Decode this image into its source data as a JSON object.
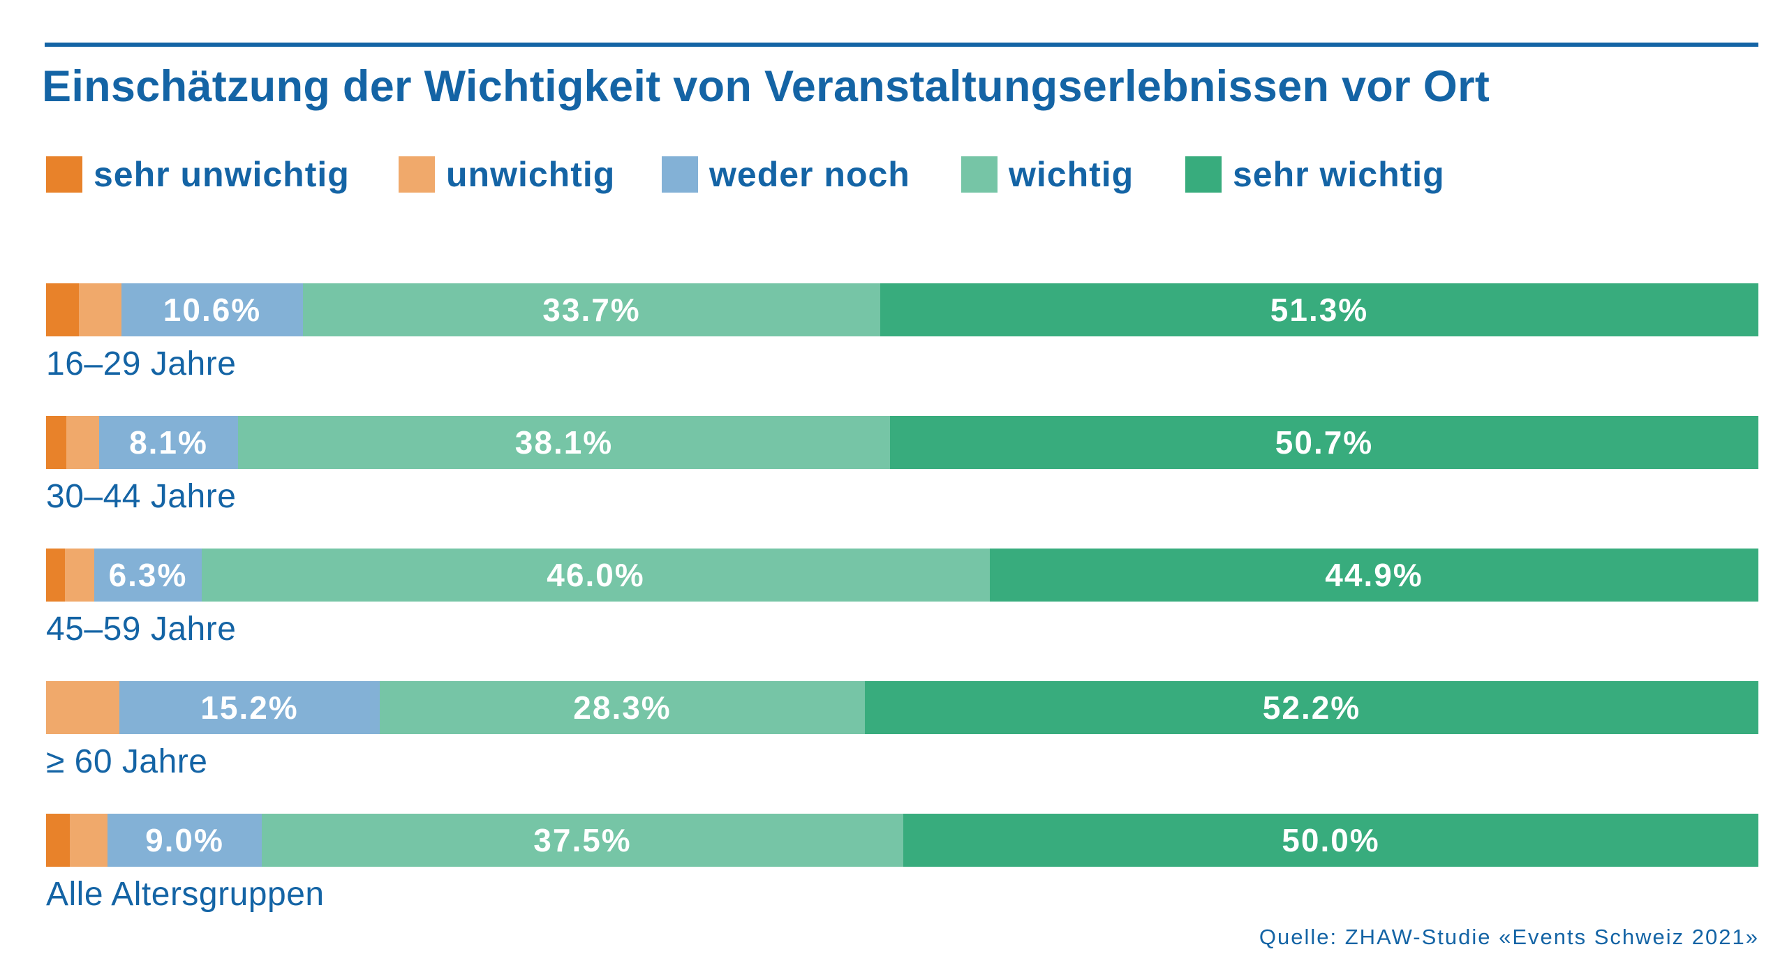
{
  "chart_data": {
    "type": "bar",
    "orientation": "horizontal",
    "stacked": true,
    "title": "Einschätzung der Wichtigkeit von Veranstaltungserlebnissen vor Ort",
    "xlim": [
      0,
      100
    ],
    "grid": false,
    "legend_position": "top",
    "categories": [
      "16–29 Jahre",
      "30–44 Jahre",
      "45–59 Jahre",
      "≥ 60 Jahre",
      "Alle Altersgruppen"
    ],
    "series": [
      {
        "name": "sehr unwichtig",
        "color": "#e8822a",
        "values": [
          1.9,
          1.2,
          1.1,
          0.0,
          1.4
        ]
      },
      {
        "name": "unwichtig",
        "color": "#f0a96b",
        "values": [
          2.5,
          1.9,
          1.7,
          4.3,
          2.2
        ]
      },
      {
        "name": "weder noch",
        "color": "#83b1d6",
        "values": [
          10.6,
          8.1,
          6.3,
          15.2,
          9.0
        ],
        "labels": [
          "10.6%",
          "8.1%",
          "6.3%",
          "15.2%",
          "9.0%"
        ]
      },
      {
        "name": "wichtig",
        "color": "#76c5a6",
        "values": [
          33.7,
          38.1,
          46.0,
          28.3,
          37.5
        ],
        "labels": [
          "33.7%",
          "38.1%",
          "46.0%",
          "28.3%",
          "37.5%"
        ]
      },
      {
        "name": "sehr wichtig",
        "color": "#38ac7d",
        "values": [
          51.3,
          50.7,
          44.9,
          52.2,
          50.0
        ],
        "labels": [
          "51.3%",
          "50.7%",
          "44.9%",
          "52.2%",
          "50.0%"
        ]
      }
    ],
    "source": "Quelle: ZHAW-Studie «Events Schweiz 2021»"
  }
}
